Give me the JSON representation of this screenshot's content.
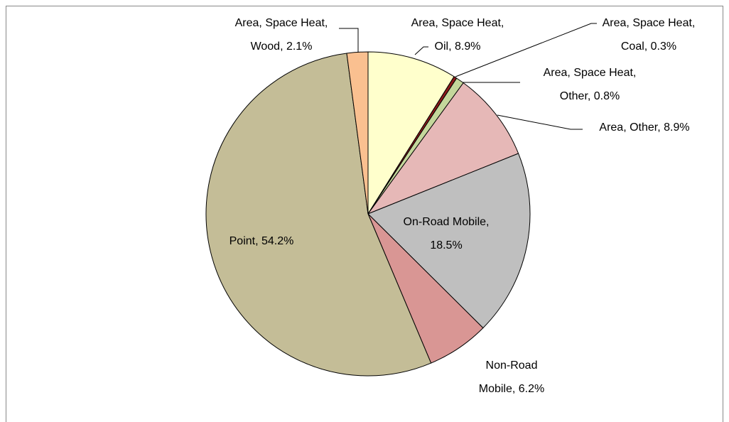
{
  "chart_data": {
    "type": "pie",
    "labels": [
      [
        "Area, Space Heat,",
        "Oil, 8.9%"
      ],
      [
        "Area, Space Heat,",
        "Coal, 0.3%"
      ],
      [
        "Area, Space Heat,",
        "Other, 0.8%"
      ],
      [
        "Area, Other, 8.9%"
      ],
      [
        "On-Road Mobile,",
        "18.5%"
      ],
      [
        "Non-Road",
        "Mobile, 6.2%"
      ],
      [
        "Point, 54.2%"
      ],
      [
        "Area, Space Heat,",
        "Wood, 2.1%"
      ]
    ],
    "values": [
      8.9,
      0.3,
      0.8,
      8.9,
      18.5,
      6.2,
      54.2,
      2.1
    ],
    "colors": [
      "#ffffcc",
      "#8b1a1a",
      "#c4d79b",
      "#e6b8b7",
      "#bfbfbf",
      "#d99694",
      "#c4bd97",
      "#fac090"
    ]
  }
}
